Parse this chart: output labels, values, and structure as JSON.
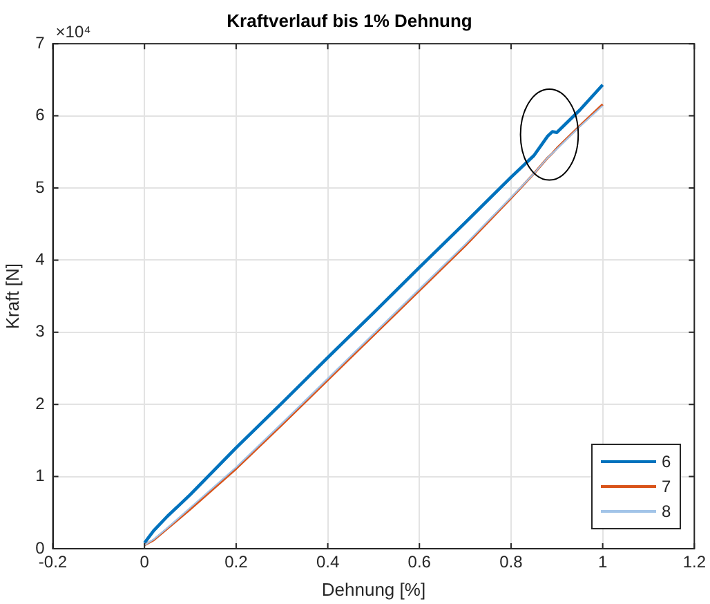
{
  "chart_data": {
    "type": "line",
    "title": "Kraftverlauf bis 1% Dehnung",
    "xlabel": "Dehnung [%]",
    "ylabel": "Kraft [N]",
    "annotations": [
      "×10⁴"
    ],
    "x": [
      0,
      0.02,
      0.05,
      0.1,
      0.2,
      0.3,
      0.4,
      0.5,
      0.6,
      0.7,
      0.8,
      0.85,
      0.88,
      0.89,
      0.9,
      0.95,
      1.0
    ],
    "series": [
      {
        "name": "6",
        "color": "#0072bd",
        "values": [
          0.08,
          0.25,
          0.45,
          0.75,
          1.4,
          2.02,
          2.65,
          3.27,
          3.9,
          4.52,
          5.15,
          5.45,
          5.72,
          5.78,
          5.77,
          6.08,
          6.43
        ]
      },
      {
        "name": "7",
        "color": "#d95319",
        "values": [
          0.05,
          0.12,
          0.28,
          0.55,
          1.11,
          1.72,
          2.34,
          2.96,
          3.58,
          4.2,
          4.86,
          5.2,
          5.42,
          5.48,
          5.55,
          5.86,
          6.16
        ]
      },
      {
        "name": "8",
        "color": "#a2c4e8",
        "values": [
          0.05,
          0.13,
          0.29,
          0.57,
          1.13,
          1.74,
          2.36,
          2.98,
          3.6,
          4.22,
          4.87,
          5.2,
          5.42,
          5.48,
          5.54,
          5.85,
          6.14
        ]
      }
    ],
    "xlim": [
      -0.2,
      1.2
    ],
    "xticks": [
      -0.2,
      0,
      0.2,
      0.4,
      0.6,
      0.8,
      1,
      1.2
    ],
    "ylim": [
      0,
      7
    ],
    "yticks": [
      0,
      1,
      2,
      3,
      4,
      5,
      6,
      7
    ],
    "grid": true,
    "legend": "bottom right",
    "marker": "none",
    "line_style": "solid"
  }
}
